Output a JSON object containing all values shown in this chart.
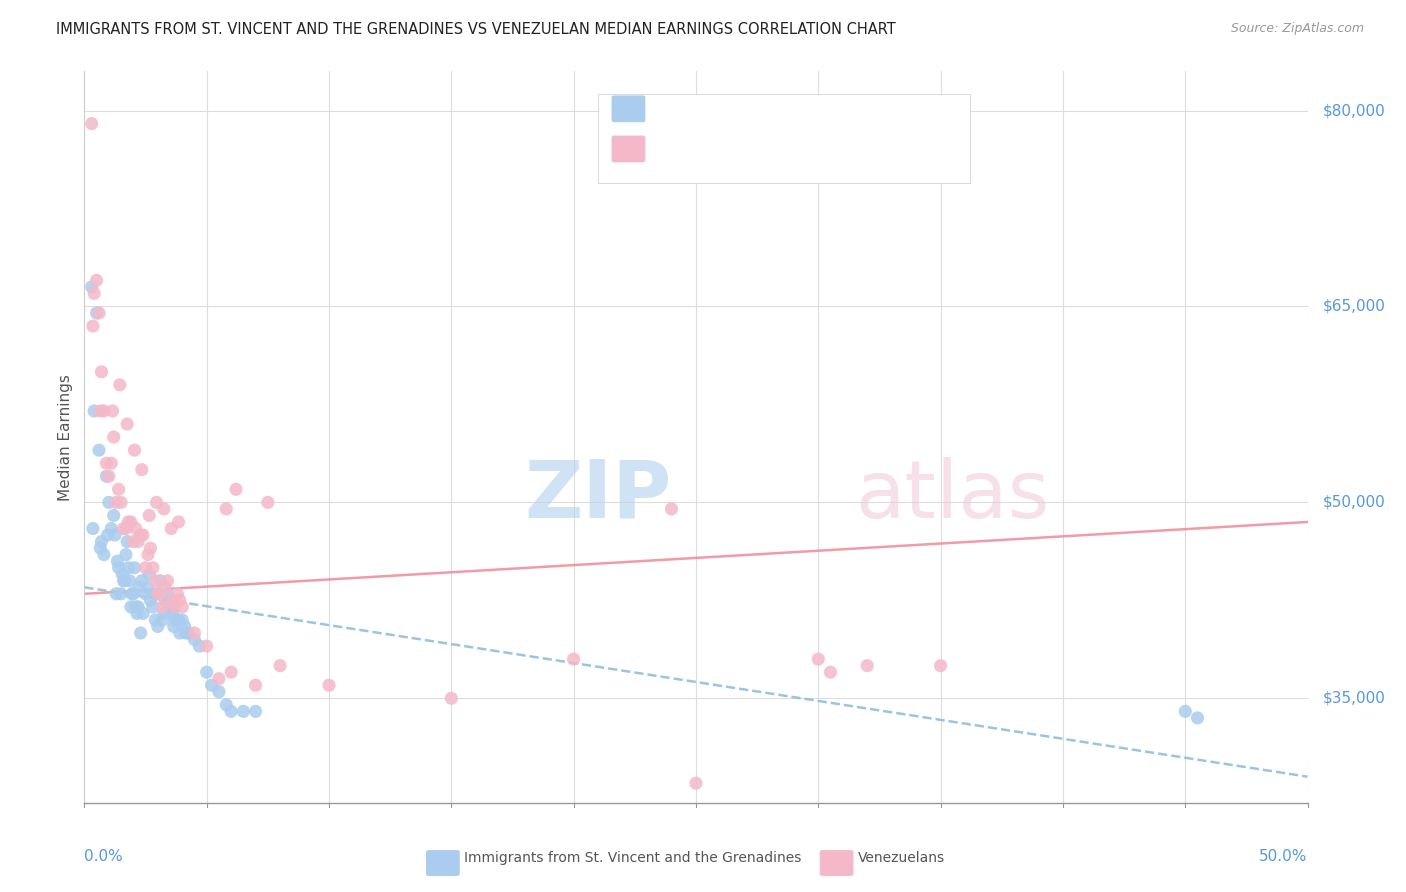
{
  "title": "IMMIGRANTS FROM ST. VINCENT AND THE GRENADINES VS VENEZUELAN MEDIAN EARNINGS CORRELATION CHART",
  "source": "Source: ZipAtlas.com",
  "ylabel": "Median Earnings",
  "y_ticks": [
    35000,
    50000,
    65000,
    80000
  ],
  "y_tick_labels": [
    "$35,000",
    "$50,000",
    "$65,000",
    "$80,000"
  ],
  "xlim": [
    0.0,
    50.0
  ],
  "ylim": [
    27000,
    83000
  ],
  "color_blue": "#aaccee",
  "color_pink": "#f4b8c8",
  "color_blue_text": "#5599dd",
  "trend_blue_color": "#88bbdd",
  "trend_pink_color": "#f08898",
  "watermark_zip_color": "#b8d4f0",
  "watermark_atlas_color": "#f0c8d8",
  "blue_x": [
    0.3,
    0.5,
    0.7,
    0.8,
    1.0,
    1.1,
    1.2,
    1.3,
    1.4,
    1.5,
    1.55,
    1.6,
    1.7,
    1.8,
    1.85,
    1.9,
    2.0,
    2.1,
    2.15,
    2.2,
    2.3,
    2.4,
    2.5,
    2.6,
    2.7,
    2.8,
    2.9,
    3.0,
    3.05,
    3.1,
    3.2,
    3.3,
    3.4,
    3.5,
    3.6,
    3.65,
    3.7,
    3.8,
    3.9,
    4.0,
    4.1,
    4.25,
    4.5,
    4.7,
    5.0,
    5.2,
    5.5,
    5.8,
    6.0,
    6.5,
    7.0,
    0.4,
    0.6,
    0.9,
    1.25,
    1.75,
    2.05,
    2.35,
    2.65,
    2.95,
    3.25,
    3.55,
    3.85,
    4.15,
    0.35,
    0.65,
    0.95,
    1.35,
    1.65,
    1.95,
    2.25,
    45.0,
    45.5
  ],
  "blue_y": [
    66500,
    64500,
    47000,
    46000,
    50000,
    48000,
    49000,
    43000,
    45000,
    43000,
    44500,
    44000,
    46000,
    45000,
    44000,
    42000,
    43000,
    42000,
    41500,
    42000,
    40000,
    41500,
    43000,
    43500,
    42500,
    42000,
    41000,
    40500,
    43000,
    44000,
    41000,
    42500,
    43000,
    42000,
    41500,
    40500,
    41000,
    41000,
    40000,
    41000,
    40500,
    40000,
    39500,
    39000,
    37000,
    36000,
    35500,
    34500,
    34000,
    34000,
    34000,
    57000,
    54000,
    52000,
    47500,
    47000,
    45000,
    44000,
    44500,
    43000,
    41500,
    42000,
    41000,
    40000,
    48000,
    46500,
    47500,
    45500,
    44000,
    43000,
    43500,
    34000,
    33500
  ],
  "pink_x": [
    0.3,
    0.5,
    0.7,
    0.8,
    1.0,
    1.2,
    1.4,
    1.5,
    1.6,
    1.8,
    2.0,
    2.1,
    2.3,
    2.5,
    2.7,
    2.9,
    3.0,
    3.2,
    3.4,
    3.6,
    3.8,
    4.0,
    4.5,
    5.0,
    5.5,
    6.0,
    7.0,
    8.0,
    10.0,
    15.0,
    20.0,
    25.0,
    30.0,
    35.0,
    0.4,
    0.6,
    0.9,
    1.15,
    1.45,
    1.75,
    2.05,
    2.35,
    2.65,
    2.95,
    3.25,
    3.55,
    3.85,
    0.35,
    0.65,
    30.5,
    32.0,
    24.0,
    5.8,
    6.2,
    7.5,
    1.1,
    1.3,
    1.7,
    1.9,
    2.2,
    2.4,
    2.6,
    2.8,
    3.1,
    3.3,
    3.7,
    3.9
  ],
  "pink_y": [
    79000,
    67000,
    60000,
    57000,
    52000,
    55000,
    51000,
    50000,
    48000,
    48500,
    47000,
    48000,
    47500,
    45000,
    46500,
    44000,
    43000,
    42000,
    44000,
    42500,
    43000,
    42000,
    40000,
    39000,
    36500,
    37000,
    36000,
    37500,
    36000,
    35000,
    38000,
    28500,
    38000,
    37500,
    66000,
    64500,
    53000,
    57000,
    59000,
    56000,
    54000,
    52500,
    49000,
    50000,
    49500,
    48000,
    48500,
    63500,
    57000,
    37000,
    37500,
    49500,
    49500,
    51000,
    50000,
    53000,
    50000,
    48000,
    48500,
    47000,
    47500,
    46000,
    45000,
    43000,
    43500,
    42000,
    42500
  ],
  "blue_trend_y": [
    43500,
    29000
  ],
  "pink_trend_y": [
    43000,
    48500
  ]
}
